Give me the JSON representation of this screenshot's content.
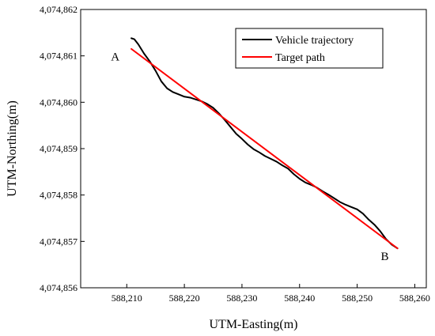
{
  "chart_data": {
    "type": "line",
    "xlabel": "UTM-Easting(m)",
    "ylabel": "UTM-Northing(m)",
    "xlim": [
      588202,
      588262
    ],
    "ylim": [
      4074856,
      4074862
    ],
    "x_ticks": [
      588210,
      588220,
      588230,
      588240,
      588250,
      588260
    ],
    "x_tick_labels": [
      "588,210",
      "588,220",
      "588,230",
      "588,240",
      "588,250",
      "588,260"
    ],
    "y_ticks": [
      4074856,
      4074857,
      4074858,
      4074859,
      4074860,
      4074861,
      4074862
    ],
    "y_tick_labels": [
      "4,074,856",
      "4,074,857",
      "4,074,858",
      "4,074,859",
      "4,074,860",
      "4,074,861",
      "4,074,862"
    ],
    "legend_position": "top-right",
    "series": [
      {
        "name": "Vehicle trajectory",
        "color": "#000000",
        "x": [
          588210.8,
          588211.3,
          588212.0,
          588213.0,
          588214.0,
          588215.0,
          588216.0,
          588217.0,
          588218.0,
          588219.0,
          588220.0,
          588221.0,
          588222.0,
          588223.0,
          588224.0,
          588225.0,
          588226.0,
          588227.0,
          588228.0,
          588229.0,
          588230.0,
          588231.0,
          588232.0,
          588233.0,
          588234.0,
          588235.0,
          588236.0,
          588237.0,
          588238.0,
          588239.0,
          588240.0,
          588241.0,
          588242.0,
          588243.0,
          588244.0,
          588245.0,
          588246.0,
          588247.0,
          588248.0,
          588249.0,
          588250.0,
          588251.0,
          588252.0,
          588253.0,
          588254.0,
          588255.0,
          588256.0,
          588257.0
        ],
        "y": [
          4074861.38,
          4074861.36,
          4074861.25,
          4074861.05,
          4074860.88,
          4074860.68,
          4074860.45,
          4074860.3,
          4074860.22,
          4074860.17,
          4074860.12,
          4074860.1,
          4074860.06,
          4074860.02,
          4074859.96,
          4074859.88,
          4074859.76,
          4074859.62,
          4074859.47,
          4074859.32,
          4074859.21,
          4074859.09,
          4074858.99,
          4074858.92,
          4074858.84,
          4074858.78,
          4074858.72,
          4074858.64,
          4074858.57,
          4074858.45,
          4074858.35,
          4074858.27,
          4074858.22,
          4074858.16,
          4074858.08,
          4074858.01,
          4074857.93,
          4074857.85,
          4074857.79,
          4074857.74,
          4074857.69,
          4074857.6,
          4074857.47,
          4074857.36,
          4074857.22,
          4074857.05,
          4074856.93,
          4074856.85
        ]
      },
      {
        "name": "Target path",
        "color": "#ff0000",
        "x": [
          588210.8,
          588257.0
        ],
        "y": [
          4074861.15,
          4074856.85
        ]
      }
    ],
    "annotations": [
      {
        "text": "A",
        "x": 588208.0,
        "y": 4074860.9
      },
      {
        "text": "B",
        "x": 588254.8,
        "y": 4074856.6
      }
    ]
  }
}
